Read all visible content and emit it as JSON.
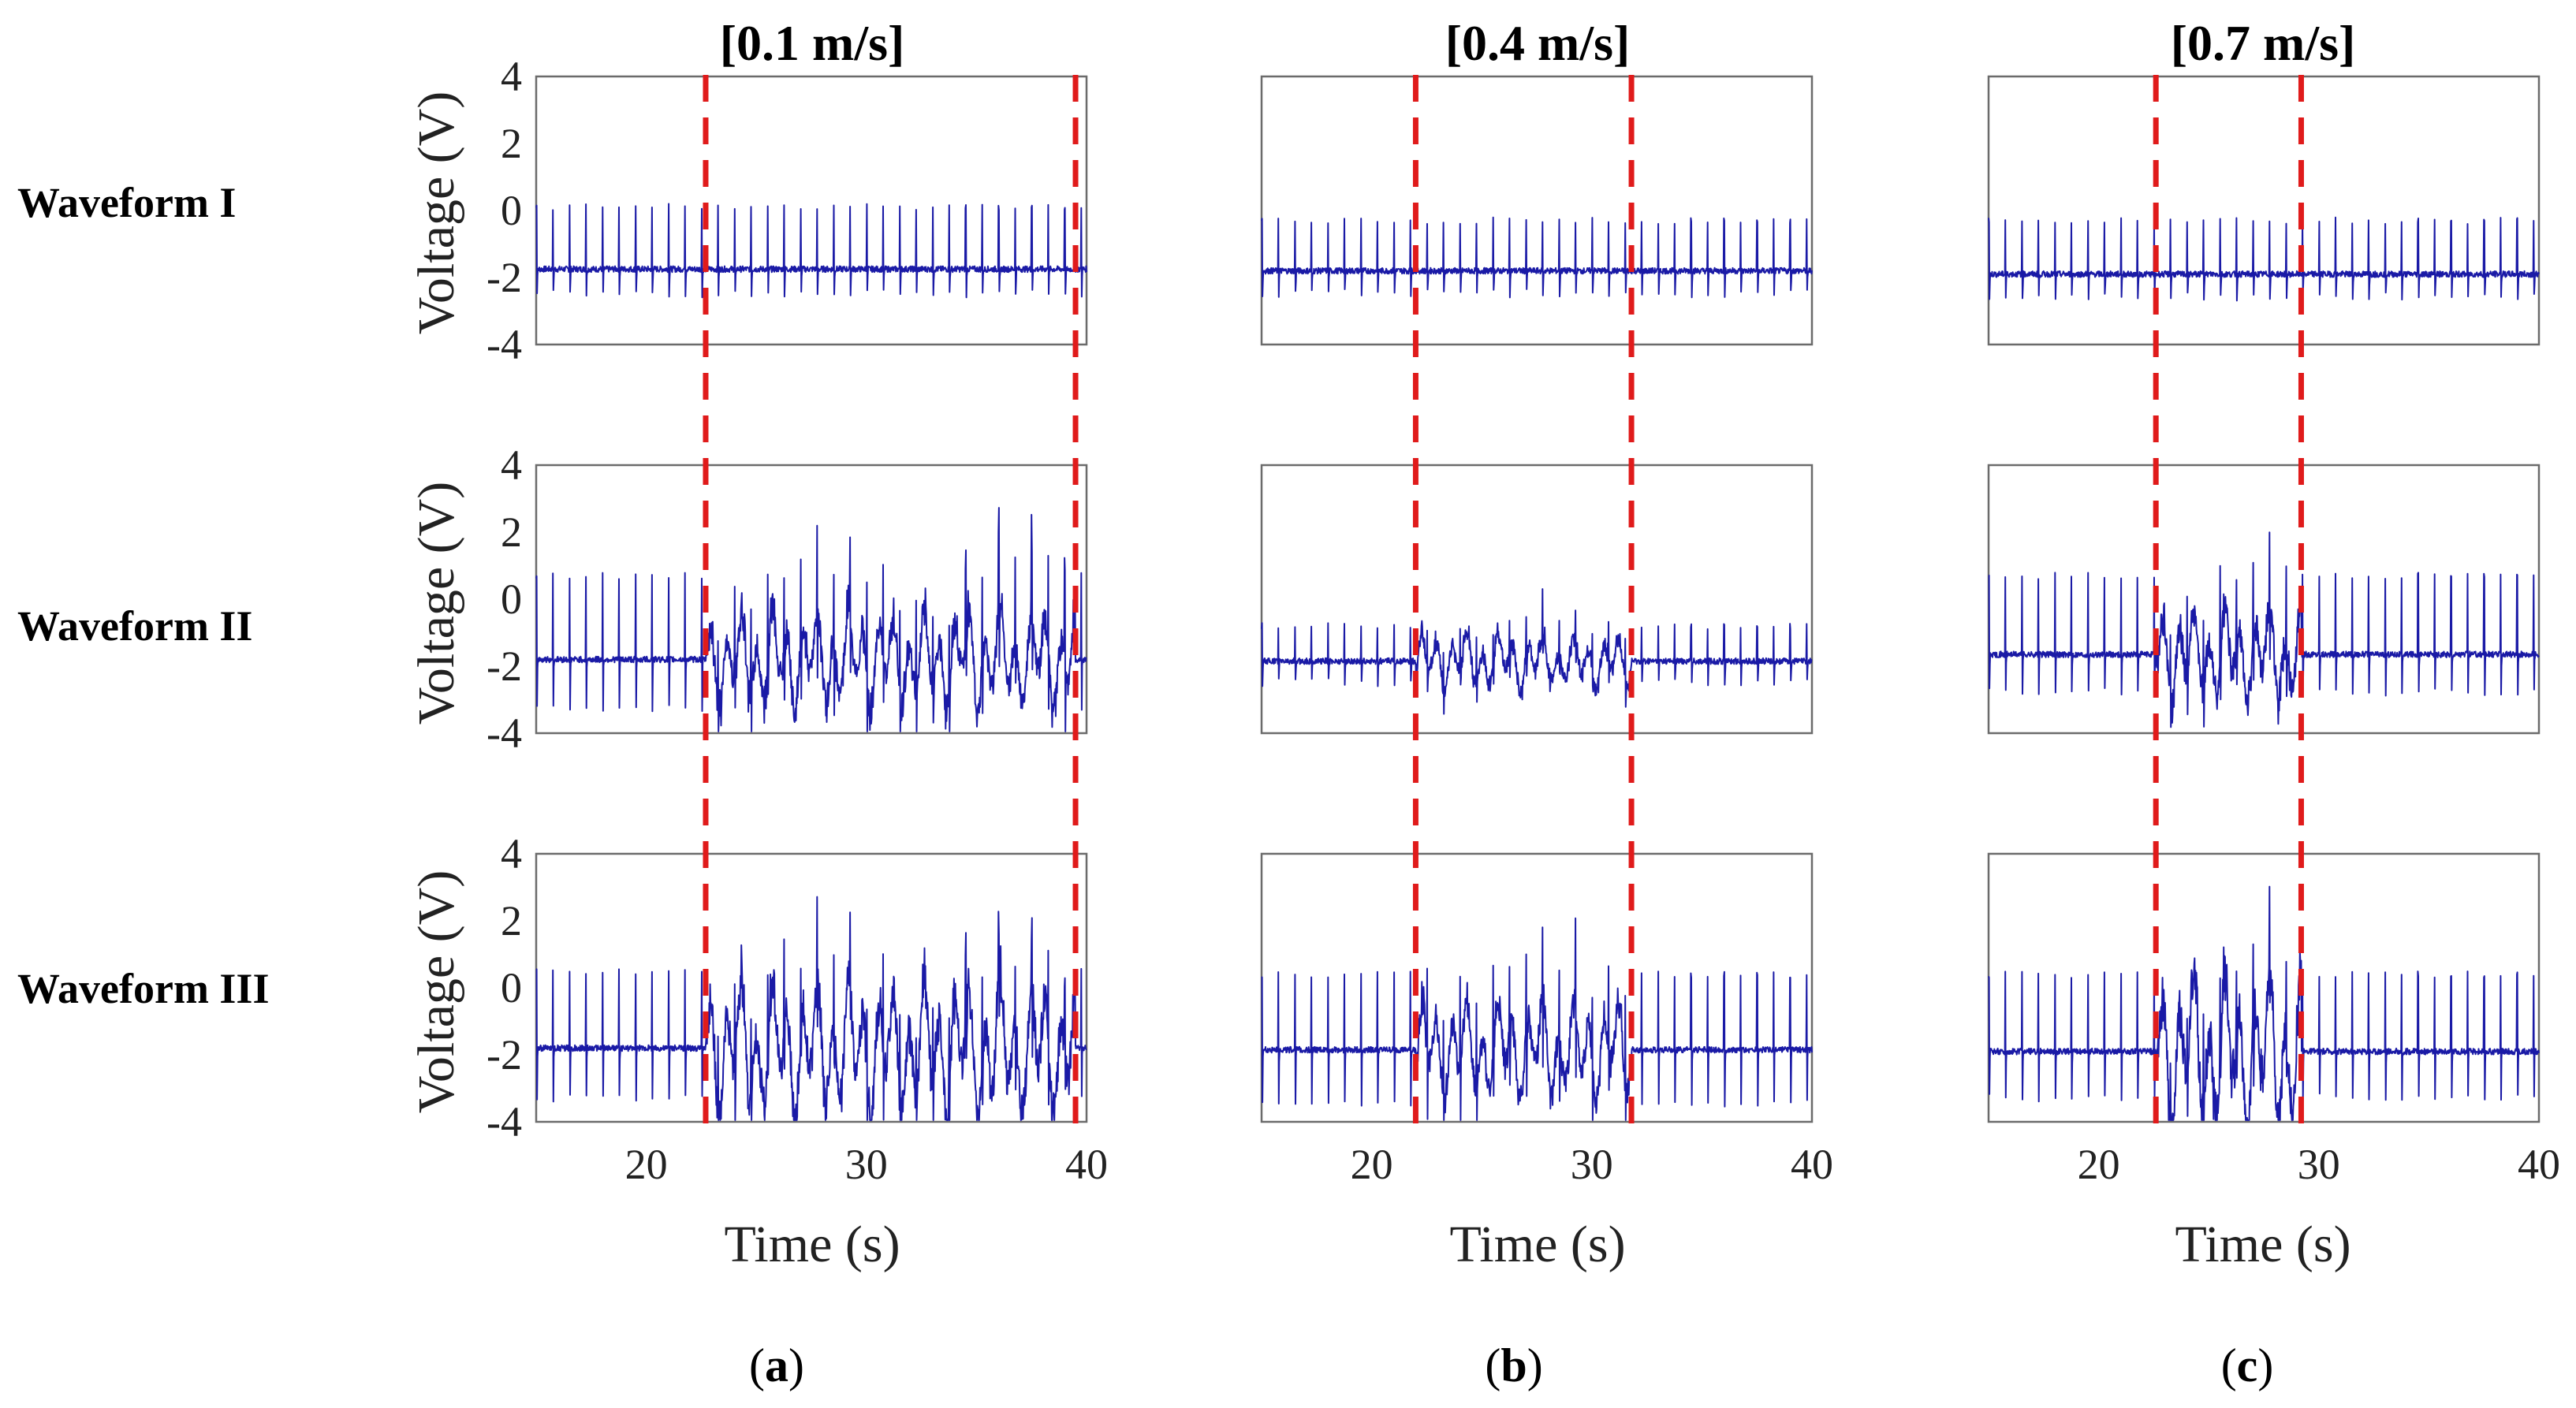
{
  "chart_data": {
    "type": "line",
    "title": "",
    "xlabel": "Time (s)",
    "ylabel": "Voltage (V)",
    "xlim": [
      15,
      40
    ],
    "ylim": [
      -4,
      4
    ],
    "xticks": [
      20,
      30,
      40
    ],
    "yticks": [
      -4,
      -2,
      0,
      2,
      4
    ],
    "rows": [
      "Waveform I",
      "Waveform II",
      "Waveform III"
    ],
    "columns": [
      {
        "title": "[0.1 m/s]",
        "label_open": "(",
        "label_letter": "a",
        "label_close": ")",
        "markers": [
          22.7,
          39.5
        ]
      },
      {
        "title": "[0.4 m/s]",
        "label_open": "(",
        "label_letter": "b",
        "label_close": ")",
        "markers": [
          22.0,
          31.8
        ]
      },
      {
        "title": "[0.7 m/s]",
        "label_open": "(",
        "label_letter": "c",
        "label_close": ")",
        "markers": [
          22.6,
          29.2
        ]
      }
    ],
    "series": [
      {
        "name": "Waveform I [0.1 m/s]",
        "baseline": -1.75,
        "peak": 0.2,
        "trough": -2.6,
        "spike_interval_s": 0.75,
        "disturbance": [
          0.0,
          0.0
        ]
      },
      {
        "name": "Waveform I [0.4 m/s]",
        "baseline": -1.8,
        "peak": -0.2,
        "trough": -2.6,
        "spike_interval_s": 0.75,
        "disturbance": [
          0.0,
          0.0
        ]
      },
      {
        "name": "Waveform I [0.7 m/s]",
        "baseline": -1.9,
        "peak": -0.2,
        "trough": -2.7,
        "spike_interval_s": 0.75,
        "disturbance": [
          0.0,
          0.0
        ]
      },
      {
        "name": "Waveform II [0.1 m/s]",
        "baseline": -1.8,
        "peak": 0.8,
        "trough": -3.4,
        "spike_interval_s": 0.75,
        "disturbance": [
          1.5,
          4.0
        ]
      },
      {
        "name": "Waveform II [0.4 m/s]",
        "baseline": -1.85,
        "peak": -0.7,
        "trough": -2.6,
        "spike_interval_s": 0.75,
        "disturbance": [
          0.9,
          2.0
        ]
      },
      {
        "name": "Waveform II [0.7 m/s]",
        "baseline": -1.65,
        "peak": 0.8,
        "trough": -2.9,
        "spike_interval_s": 0.75,
        "disturbance": [
          1.6,
          3.6
        ]
      },
      {
        "name": "Waveform III [0.1 m/s]",
        "baseline": -1.8,
        "peak": 0.6,
        "trough": -3.4,
        "spike_interval_s": 0.75,
        "disturbance": [
          2.4,
          4.6
        ]
      },
      {
        "name": "Waveform III [0.4 m/s]",
        "baseline": -1.85,
        "peak": 0.5,
        "trough": -3.6,
        "spike_interval_s": 0.75,
        "disturbance": [
          1.8,
          3.2
        ]
      },
      {
        "name": "Waveform III [0.7 m/s]",
        "baseline": -1.9,
        "peak": 0.5,
        "trough": -3.4,
        "spike_interval_s": 0.75,
        "disturbance": [
          3.0,
          5.0
        ]
      }
    ]
  }
}
